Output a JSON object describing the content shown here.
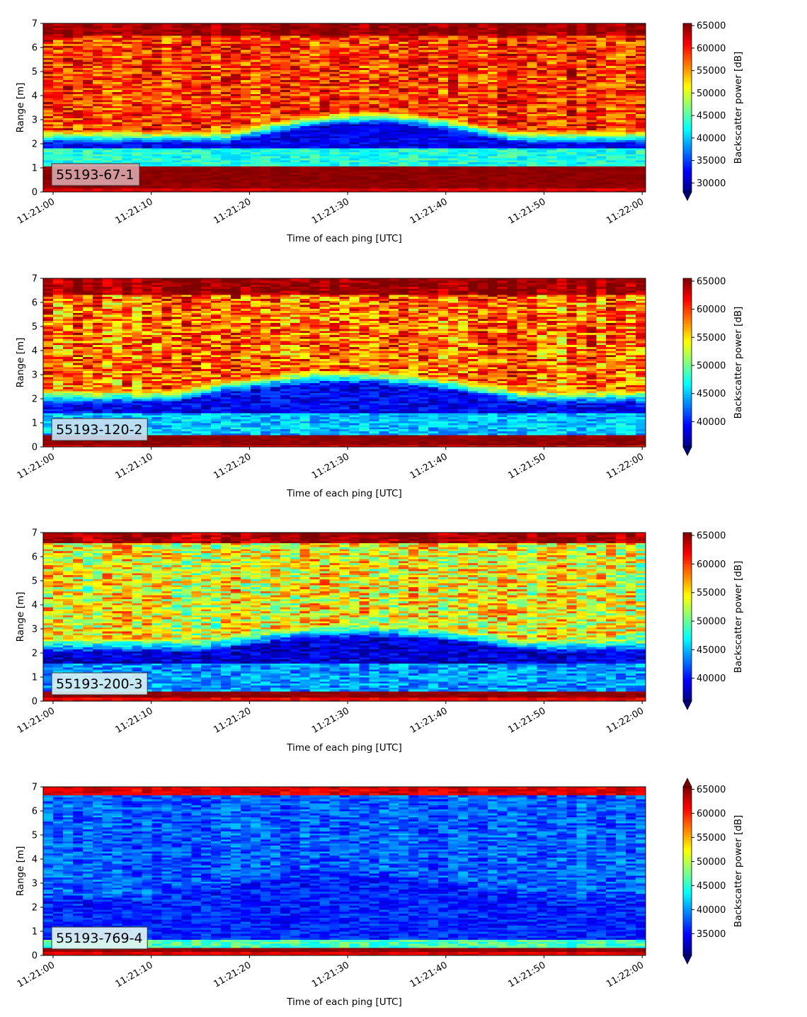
{
  "chart_data": [
    {
      "type": "heatmap",
      "label": "55193-67-1",
      "label_box_color": "#d9a3a8",
      "xlabel": "Time of each ping [UTC]",
      "ylabel": "Range [m]",
      "xticks": [
        "11:21:00",
        "11:21:10",
        "11:21:20",
        "11:21:30",
        "11:21:40",
        "11:21:50",
        "11:22:00"
      ],
      "yticks": [
        "0",
        "1",
        "2",
        "3",
        "4",
        "5",
        "6",
        "7"
      ],
      "ylim": [
        0,
        7
      ],
      "colorbar": {
        "label": "Backscatter power [dB]",
        "ticks": [
          "30000",
          "35000",
          "40000",
          "45000",
          "50000",
          "55000",
          "60000",
          "65000"
        ],
        "vmin": 28000,
        "vmax": 65500,
        "extend": "min",
        "colormap": "jet"
      },
      "profile": {
        "surface_band_m": [
          0.2,
          1.1
        ],
        "surface_level": 65000,
        "near_range_level": 43000,
        "gap_end_m": 1.8,
        "shadow_level": 31000,
        "shadow_mid_top_m": 2.8,
        "shadow_edge_top_m": 2.0,
        "shadow_time_span_s": [
          18,
          47
        ],
        "background_level": 59000,
        "background_spread": 5500,
        "top_bright_m": 6.5,
        "top_level": 64500
      }
    },
    {
      "type": "heatmap",
      "label": "55193-120-2",
      "label_box_color": "#c9dff2",
      "xlabel": "Time of each ping [UTC]",
      "ylabel": "Range [m]",
      "xticks": [
        "11:21:00",
        "11:21:10",
        "11:21:20",
        "11:21:30",
        "11:21:40",
        "11:21:50",
        "11:22:00"
      ],
      "yticks": [
        "0",
        "1",
        "2",
        "3",
        "4",
        "5",
        "6",
        "7"
      ],
      "ylim": [
        0,
        7
      ],
      "colorbar": {
        "label": "Backscatter power [dB]",
        "ticks": [
          "40000",
          "45000",
          "50000",
          "55000",
          "60000",
          "65000"
        ],
        "vmin": 35500,
        "vmax": 65500,
        "extend": "min",
        "colormap": "jet"
      },
      "profile": {
        "surface_band_m": [
          0.05,
          0.5
        ],
        "surface_level": 65000,
        "near_range_level": 45000,
        "gap_end_m": 1.4,
        "shadow_level": 38000,
        "shadow_mid_top_m": 2.6,
        "shadow_edge_top_m": 1.8,
        "shadow_time_span_s": [
          12,
          48
        ],
        "background_level": 58500,
        "background_spread": 5500,
        "top_bright_m": 6.3,
        "top_level": 64500
      }
    },
    {
      "type": "heatmap",
      "label": "55193-200-3",
      "label_box_color": "#d6f0f3",
      "xlabel": "Time of each ping [UTC]",
      "ylabel": "Range [m]",
      "xticks": [
        "11:21:00",
        "11:21:10",
        "11:21:20",
        "11:21:30",
        "11:21:40",
        "11:21:50",
        "11:22:00"
      ],
      "yticks": [
        "0",
        "1",
        "2",
        "3",
        "4",
        "5",
        "6",
        "7"
      ],
      "ylim": [
        0,
        7
      ],
      "colorbar": {
        "label": "Backscatter power [dB]",
        "ticks": [
          "40000",
          "45000",
          "50000",
          "55000",
          "60000",
          "65000"
        ],
        "vmin": 36000,
        "vmax": 65500,
        "extend": "min",
        "colormap": "jet"
      },
      "profile": {
        "surface_band_m": [
          0.15,
          0.45
        ],
        "surface_level": 65000,
        "near_range_level": 44000,
        "gap_end_m": 1.6,
        "shadow_level": 37500,
        "shadow_mid_top_m": 2.6,
        "shadow_edge_top_m": 2.0,
        "shadow_time_span_s": [
          16,
          48
        ],
        "background_level": 54000,
        "background_spread": 5500,
        "top_bright_m": 6.6,
        "top_level": 64000
      }
    },
    {
      "type": "heatmap",
      "label": "55193-769-4",
      "label_box_color": "#dff4f3",
      "xlabel": "Time of each ping [UTC]",
      "ylabel": "Range [m]",
      "xticks": [
        "11:21:00",
        "11:21:10",
        "11:21:20",
        "11:21:30",
        "11:21:40",
        "11:21:50",
        "11:22:00"
      ],
      "yticks": [
        "0",
        "1",
        "2",
        "3",
        "4",
        "5",
        "6",
        "7"
      ],
      "ylim": [
        0,
        7
      ],
      "colorbar": {
        "label": "Backscatter power [dB]",
        "ticks": [
          "35000",
          "40000",
          "45000",
          "50000",
          "55000",
          "60000",
          "65000"
        ],
        "vmin": 30500,
        "vmax": 65500,
        "extend": "both",
        "colormap": "jet"
      },
      "profile": {
        "surface_band_m": [
          0.15,
          0.3
        ],
        "surface_level": 65000,
        "near_range_level": 46000,
        "gap_end_m": 0.7,
        "shadow_level": 35000,
        "shadow_mid_top_m": 3.0,
        "shadow_edge_top_m": 2.0,
        "shadow_time_span_s": [
          10,
          50
        ],
        "background_level": 38000,
        "background_spread": 3000,
        "top_bright_m": 6.7,
        "top_level": 62000
      }
    }
  ]
}
